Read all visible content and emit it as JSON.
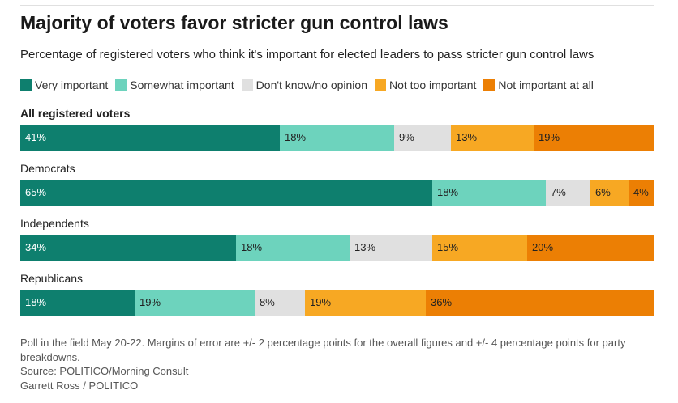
{
  "title": "Majority of voters favor stricter gun control laws",
  "subtitle": "Percentage of registered voters who think it's important for elected leaders to pass stricter gun control laws",
  "legend": [
    {
      "label": "Very important",
      "color": "#0e7f6e"
    },
    {
      "label": "Somewhat important",
      "color": "#6dd3bd"
    },
    {
      "label": "Don't know/no opinion",
      "color": "#e0e0e0"
    },
    {
      "label": "Not too important",
      "color": "#f7a823"
    },
    {
      "label": "Not important at all",
      "color": "#ec7f04"
    }
  ],
  "chart_data": {
    "type": "bar",
    "orientation": "horizontal",
    "stacked": true,
    "categories": [
      "All registered voters",
      "Democrats",
      "Independents",
      "Republicans"
    ],
    "series": [
      {
        "name": "Very important",
        "values": [
          41,
          65,
          34,
          18
        ],
        "labels": [
          "41%",
          "65%",
          "34%",
          "18%"
        ]
      },
      {
        "name": "Somewhat important",
        "values": [
          18,
          18,
          18,
          19
        ],
        "labels": [
          "18%",
          "18%",
          "18%",
          "19%"
        ]
      },
      {
        "name": "Don't know/no opinion",
        "values": [
          9,
          7,
          13,
          8
        ],
        "labels": [
          "9%",
          "7%",
          "13%",
          "8%"
        ]
      },
      {
        "name": "Not too important",
        "values": [
          13,
          6,
          15,
          19
        ],
        "labels": [
          "13%",
          "6%",
          "15%",
          "19%"
        ]
      },
      {
        "name": "Not important at all",
        "values": [
          19,
          4,
          20,
          36
        ],
        "labels": [
          "19%",
          "4%",
          "20%",
          "36%"
        ]
      }
    ],
    "xlim": [
      0,
      100
    ]
  },
  "footer": {
    "note": "Poll in the field May 20-22. Margins of error are +/- 2 percentage points for the overall figures and +/- 4 percentage points for party breakdowns.",
    "source": "Source: POLITICO/Morning Consult",
    "credit": "Garrett Ross / POLITICO"
  }
}
